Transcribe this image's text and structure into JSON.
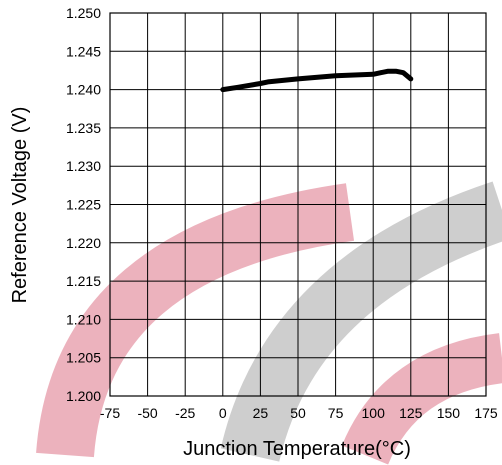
{
  "chart_data": {
    "type": "line",
    "title": "",
    "xlabel": "Junction Temperature(°C)",
    "ylabel": "Reference Voltage (V)",
    "xlim": [
      -75,
      175
    ],
    "ylim": [
      1.2,
      1.25
    ],
    "x_ticks": [
      -75,
      -50,
      -25,
      0,
      25,
      50,
      75,
      100,
      125,
      150,
      175
    ],
    "x_tick_labels": [
      "-75",
      "-50",
      "-25",
      "0",
      "25",
      "50",
      "75",
      "100",
      "125",
      "150",
      "175"
    ],
    "y_ticks": [
      1.2,
      1.205,
      1.21,
      1.215,
      1.22,
      1.225,
      1.23,
      1.235,
      1.24,
      1.245,
      1.25
    ],
    "y_tick_labels": [
      "1.200",
      "1.205",
      "1.210",
      "1.215",
      "1.220",
      "1.225",
      "1.230",
      "1.235",
      "1.240",
      "1.245",
      "1.250"
    ],
    "grid": true,
    "legend": "none",
    "series": [
      {
        "color": "#000000",
        "x": [
          0,
          10,
          25,
          30,
          50,
          75,
          100,
          105,
          110,
          115,
          120,
          125
        ],
        "y": [
          1.24,
          1.2403,
          1.2408,
          1.241,
          1.2414,
          1.2418,
          1.242,
          1.2422,
          1.2424,
          1.2424,
          1.2422,
          1.2414
        ]
      }
    ]
  },
  "colors": {
    "watermark_pink": "#e9a4b1",
    "watermark_gray": "#c9c9c9",
    "grid": "#000000",
    "line": "#000000"
  }
}
